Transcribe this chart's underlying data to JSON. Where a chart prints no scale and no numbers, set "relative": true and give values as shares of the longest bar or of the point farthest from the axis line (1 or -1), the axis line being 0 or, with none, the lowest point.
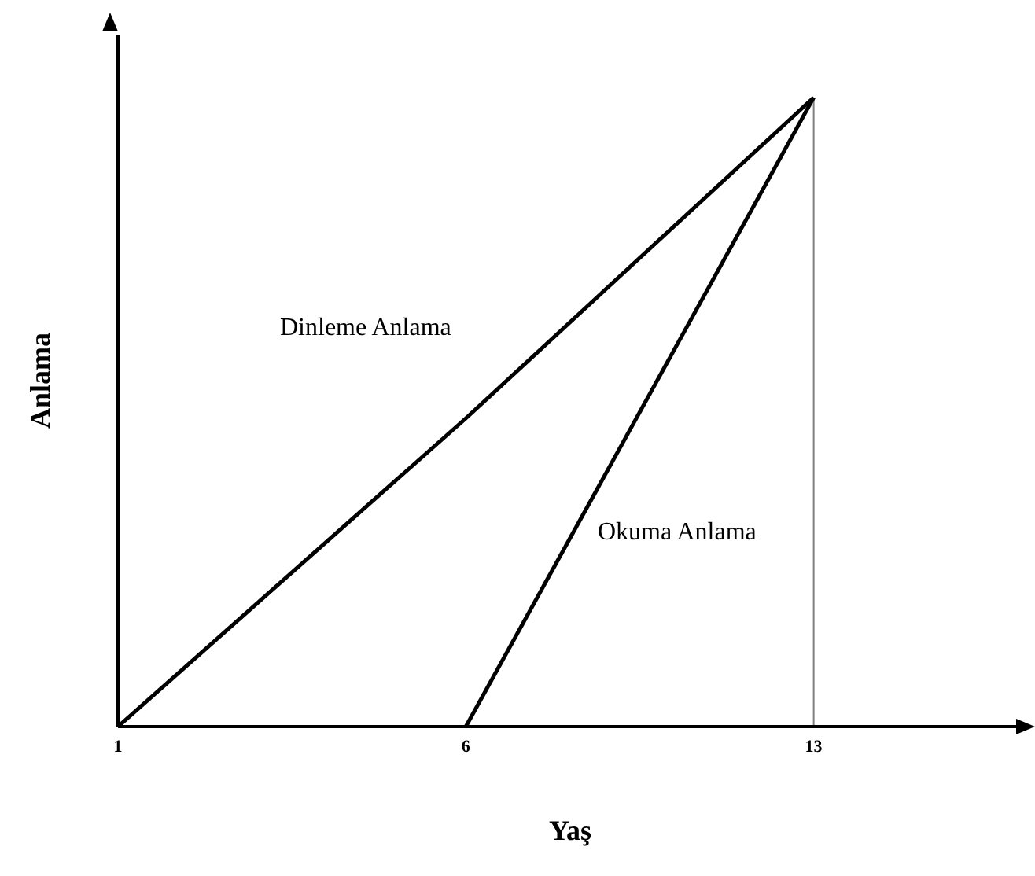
{
  "chart_data": {
    "type": "line",
    "xlabel": "Yaş",
    "ylabel": "Anlama",
    "categories": [
      "1",
      "6",
      "13"
    ],
    "series": [
      {
        "name": "Dinleme Anlama",
        "color": "#000000",
        "values": [
          0,
          0.49,
          1
        ]
      },
      {
        "name": "Okuma Anlama",
        "color": "#000000",
        "values": [
          null,
          0,
          1
        ]
      }
    ],
    "relative": true,
    "legend": false,
    "grid": false,
    "marker": "none",
    "line_style": "solid",
    "ref_lines": [
      {
        "axis": "x",
        "value": "13",
        "color": "#808080"
      }
    ]
  }
}
